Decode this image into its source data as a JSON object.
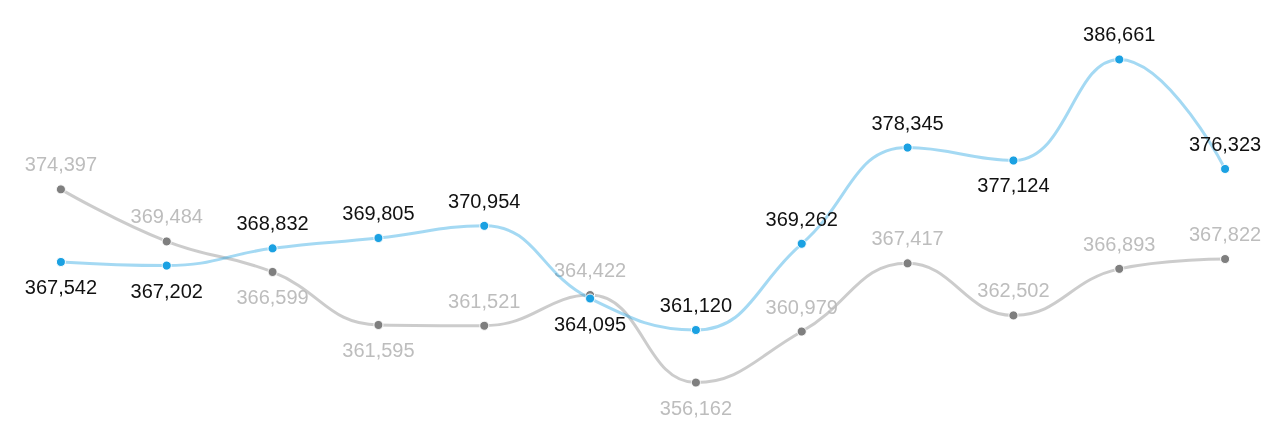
{
  "chart_data": {
    "type": "line",
    "categories": [
      null,
      null,
      null,
      null,
      null,
      null,
      null,
      null,
      null,
      null,
      null,
      null
    ],
    "series": [
      {
        "color": "#1ba1e2",
        "values": [
          367542,
          367202,
          368832,
          369805,
          370954,
          364095,
          361120,
          369262,
          378345,
          377124,
          386661,
          376323
        ],
        "value_labels": [
          "367,542",
          "367,202",
          "368,832",
          "369,805",
          "370,954",
          "364,095",
          "361,120",
          "369,262",
          "378,345",
          "377,124",
          "386,661",
          "376,323"
        ]
      },
      {
        "color": "#7f7f7f",
        "values": [
          374397,
          369484,
          366599,
          361595,
          361521,
          364422,
          356162,
          360979,
          367417,
          362502,
          366893,
          367822
        ],
        "value_labels": [
          "374,397",
          "369,484",
          "366,599",
          "361,595",
          "361,521",
          "364,422",
          "356,162",
          "360,979",
          "367,417",
          "362,502",
          "366,893",
          "367,822"
        ]
      }
    ],
    "marker": "circle",
    "line_style": "solid",
    "grid": false
  }
}
